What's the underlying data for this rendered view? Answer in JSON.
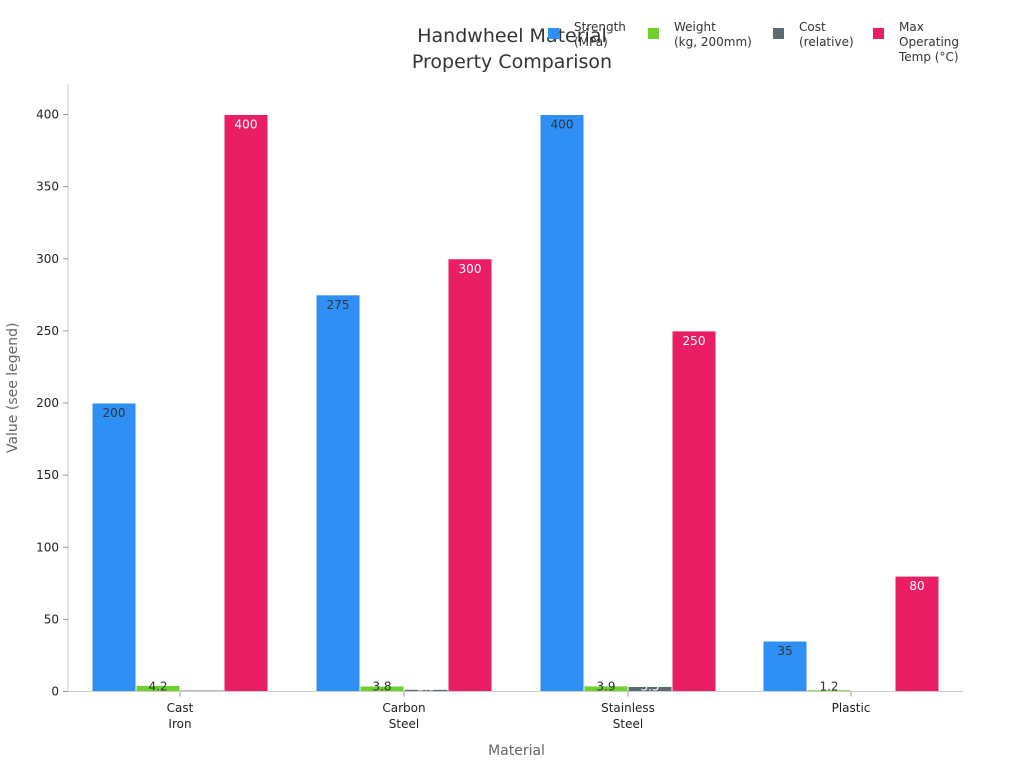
{
  "chart_data": {
    "type": "bar",
    "title": "Handwheel Material\nProperty Comparison",
    "xlabel": "Material",
    "ylabel": "Value (see legend)",
    "ylim": [
      0,
      420
    ],
    "yticks": [
      0,
      50,
      100,
      150,
      200,
      250,
      300,
      350,
      400
    ],
    "categories": [
      "Cast\nIron",
      "Carbon\nSteel",
      "Stainless\nSteel",
      "Plastic"
    ],
    "series": [
      {
        "name": "Strength\n(MPa)",
        "values": [
          200,
          275,
          400,
          35
        ],
        "color": "#2e8ff5",
        "label_color": "#333333",
        "show_labels": true
      },
      {
        "name": "Weight\n(kg, 200mm)",
        "values": [
          4.2,
          3.8,
          3.9,
          1.2
        ],
        "color": "#6ed12e",
        "label_color": "#333333",
        "show_labels": true
      },
      {
        "name": "Cost\n(relative)",
        "values": [
          1,
          1.5,
          3.5,
          0.5
        ],
        "color": "#5a6b76",
        "label_color": "#ffffff",
        "show_labels": true
      },
      {
        "name": "Max\nOperating\nTemp (°C)",
        "values": [
          400,
          300,
          250,
          80
        ],
        "color": "#e91e63",
        "label_color": "#ffffff",
        "show_labels": true
      }
    ],
    "grid": false,
    "legend_position": "top-right"
  }
}
